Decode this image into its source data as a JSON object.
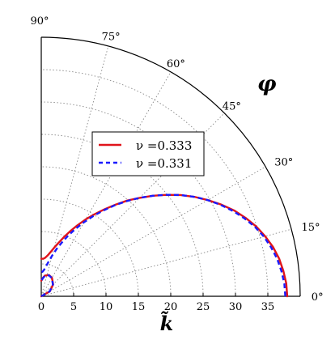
{
  "chart_data": {
    "type": "line",
    "title": "",
    "coordinate_system": "polar-quadrant",
    "angular_axis": {
      "label": "φ",
      "unit": "degrees",
      "range": [
        0,
        90
      ],
      "ticks": [
        0,
        15,
        30,
        45,
        60,
        75,
        90
      ],
      "tick_labels": [
        "0°",
        "15°",
        "30°",
        "45°",
        "60°",
        "75°",
        "90°"
      ]
    },
    "radial_axis": {
      "label": "k̃",
      "range": [
        0,
        40
      ],
      "ticks": [
        0,
        5,
        10,
        15,
        20,
        25,
        30,
        35
      ],
      "tick_labels": [
        "0",
        "5",
        "10",
        "15",
        "20",
        "25",
        "30",
        "35"
      ]
    },
    "grid": true,
    "legend": {
      "placement": "center",
      "entries": [
        {
          "label": "ν =0.333",
          "color": "#e0141b",
          "dash": "solid"
        },
        {
          "label": "ν =0.331",
          "color": "#1a1aff",
          "dash": "dashed"
        }
      ]
    },
    "series": [
      {
        "name": "ν =0.333",
        "color": "#e0141b",
        "dash": "solid",
        "curves": [
          [
            [
              38.0,
              0
            ],
            [
              37.9,
              3
            ],
            [
              37.6,
              6
            ],
            [
              37.2,
              9
            ],
            [
              36.6,
              12
            ],
            [
              35.8,
              15
            ],
            [
              34.9,
              18
            ],
            [
              33.8,
              21
            ],
            [
              32.6,
              24
            ],
            [
              31.2,
              27
            ],
            [
              29.7,
              30
            ],
            [
              28.2,
              33
            ],
            [
              26.6,
              36
            ],
            [
              24.9,
              39
            ],
            [
              23.2,
              42
            ],
            [
              21.5,
              45
            ],
            [
              19.9,
              48
            ],
            [
              18.2,
              51
            ],
            [
              16.6,
              54
            ],
            [
              15.1,
              57
            ],
            [
              13.7,
              60
            ],
            [
              12.3,
              63
            ],
            [
              11.0,
              66
            ],
            [
              9.8,
              69
            ],
            [
              8.7,
              72
            ],
            [
              7.8,
              75
            ],
            [
              7.0,
              78
            ],
            [
              6.4,
              81
            ],
            [
              6.0,
              84
            ],
            [
              5.8,
              87
            ],
            [
              5.8,
              90
            ]
          ],
          [
            [
              0,
              0
            ],
            [
              1.55,
              30
            ],
            [
              2.6,
              45
            ],
            [
              3.3,
              60
            ],
            [
              3.5,
              70
            ],
            [
              3.25,
              80
            ],
            [
              2.85,
              85
            ],
            [
              2.4,
              90
            ]
          ]
        ]
      },
      {
        "name": "ν =0.331",
        "color": "#1a1aff",
        "dash": "dashed",
        "curves": [
          [
            [
              37.7,
              0
            ],
            [
              37.6,
              3
            ],
            [
              37.3,
              6
            ],
            [
              36.9,
              9
            ],
            [
              36.3,
              12
            ],
            [
              35.6,
              15
            ],
            [
              34.7,
              18
            ],
            [
              33.6,
              21
            ],
            [
              32.4,
              24
            ],
            [
              31.1,
              27
            ],
            [
              29.7,
              30
            ],
            [
              28.2,
              33
            ],
            [
              26.6,
              36
            ],
            [
              24.9,
              39
            ],
            [
              23.2,
              42
            ],
            [
              21.5,
              45
            ],
            [
              19.8,
              48
            ],
            [
              18.1,
              51
            ],
            [
              16.4,
              54
            ],
            [
              14.8,
              57
            ],
            [
              13.2,
              60
            ],
            [
              11.7,
              63
            ],
            [
              10.3,
              66
            ],
            [
              8.9,
              69
            ],
            [
              7.7,
              72
            ],
            [
              6.5,
              75
            ],
            [
              5.5,
              78
            ],
            [
              4.7,
              81
            ],
            [
              4.1,
              84
            ],
            [
              3.8,
              87
            ],
            [
              3.7,
              90
            ]
          ],
          [
            [
              0,
              0
            ],
            [
              1.5,
              30
            ],
            [
              2.55,
              45
            ],
            [
              3.25,
              60
            ],
            [
              3.45,
              70
            ],
            [
              3.2,
              80
            ],
            [
              2.8,
              85
            ],
            [
              2.35,
              90
            ]
          ]
        ]
      }
    ]
  }
}
